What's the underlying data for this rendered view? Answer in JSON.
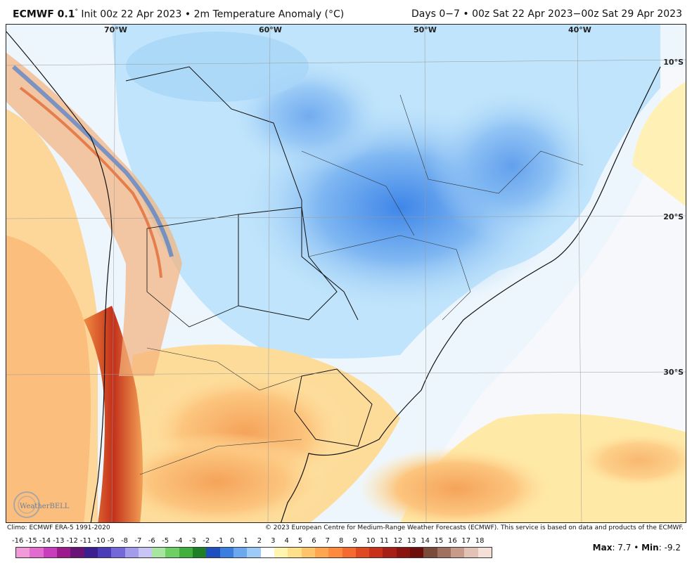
{
  "header": {
    "model": "ECMWF 0.1",
    "deg": "°",
    "run_info": "Init 00z 22 Apr 2023 • 2m Temperature Anomaly (°C)",
    "period": "Days 0−7 • 00z Sat 22 Apr 2023−00z Sat 29 Apr 2023"
  },
  "map": {
    "lon_labels": [
      "70°W",
      "60°W",
      "50°W",
      "40°W"
    ],
    "lat_labels": [
      "10°S",
      "20°S",
      "30°S"
    ]
  },
  "footer": {
    "climo": "Climo: ECMWF ERA-5 1991-2020",
    "copyright": "© 2023 European Centre for Medium-Range Weather Forecasts (ECMWF). This service is based on data and products of the ECMWF.",
    "logo_text": "WeatherBELL"
  },
  "colorbar": {
    "ticks": [
      "-16",
      "-15",
      "-14",
      "-13",
      "-12",
      "-11",
      "-10",
      "-9",
      "-8",
      "-7",
      "-6",
      "-5",
      "-4",
      "-3",
      "-2",
      "-1",
      "0",
      "1",
      "2",
      "3",
      "4",
      "5",
      "6",
      "7",
      "8",
      "9",
      "10",
      "11",
      "12",
      "13",
      "14",
      "15",
      "16",
      "17",
      "18"
    ],
    "colors": [
      "#f29ad9",
      "#e26bd0",
      "#c93cbd",
      "#9b1a8e",
      "#6a1377",
      "#3b1f8f",
      "#4a3bb8",
      "#7467d8",
      "#a39cec",
      "#c8c4f6",
      "#a8e6a0",
      "#6dcf64",
      "#3fb03b",
      "#1f7f26",
      "#1d4fbf",
      "#3a7fe0",
      "#6aa9f0",
      "#9ccbf7",
      "#ffffff",
      "#fff4b0",
      "#ffe08a",
      "#ffc46a",
      "#ffa64f",
      "#ff8a3d",
      "#f56a2e",
      "#e04a22",
      "#c8301a",
      "#a81f15",
      "#8a1410",
      "#6e0e0b",
      "#7a4a3a",
      "#a07060",
      "#c89a8a",
      "#e3c2b6",
      "#f5e0d8"
    ]
  },
  "stats": {
    "max_label": "Max",
    "max_value": ": 7.7 • ",
    "min_label": "Min",
    "min_value": ": -9.2"
  }
}
